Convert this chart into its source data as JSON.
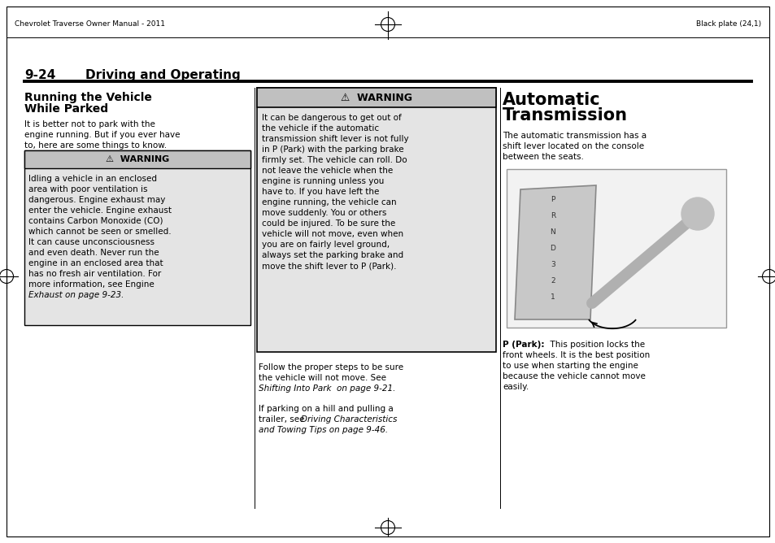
{
  "bg_color": "#ffffff",
  "font_color": "#000000",
  "header_left": "Chevrolet Traverse Owner Manual - 2011",
  "header_right": "Black plate (24,1)",
  "section_number": "9-24",
  "section_title": "Driving and Operating",
  "warning_bg_dark": "#c8c8c8",
  "warning_bg_light": "#e8e8e8",
  "warning_border": "#000000",
  "col1_head1": "Running the Vehicle",
  "col1_head2": "While Parked",
  "col1_intro": [
    "It is better not to park with the",
    "engine running. But if you ever have",
    "to, here are some things to know."
  ],
  "col1_warn_body": [
    "Idling a vehicle in an enclosed",
    "area with poor ventilation is",
    "dangerous. Engine exhaust may",
    "enter the vehicle. Engine exhaust",
    "contains Carbon Monoxide (CO)",
    "which cannot be seen or smelled.",
    "It can cause unconsciousness",
    "and even death. Never run the",
    "engine in an enclosed area that",
    "has no fresh air ventilation. For",
    "more information, see Engine",
    "Exhaust on page 9-23."
  ],
  "col1_warn_italic_from": 11,
  "col2_warn_body": [
    "It can be dangerous to get out of",
    "the vehicle if the automatic",
    "transmission shift lever is not fully",
    "in P (Park) with the parking brake",
    "firmly set. The vehicle can roll. Do",
    "not leave the vehicle when the",
    "engine is running unless you",
    "have to. If you have left the",
    "engine running, the vehicle can",
    "move suddenly. You or others",
    "could be injured. To be sure the",
    "vehicle will not move, even when",
    "you are on fairly level ground,",
    "always set the parking brake and",
    "move the shift lever to P (Park)."
  ],
  "col2_footer1": [
    "Follow the proper steps to be sure",
    "the vehicle will not move. See",
    "Shifting Into Park  on page 9-21."
  ],
  "col2_footer1_italic_from": 2,
  "col2_footer2_line1": "If parking on a hill and pulling a",
  "col2_footer2_line2_normal": "trailer, see ",
  "col2_footer2_line2_italic": "Driving Characteristics",
  "col2_footer2_line3_italic": "and Towing Tips on page 9-46.",
  "col3_head1": "Automatic",
  "col3_head2": "Transmission",
  "col3_intro": [
    "The automatic transmission has a",
    "shift lever located on the console",
    "between the seats."
  ],
  "col3_park_bold": "P (Park):",
  "col3_park_rest": [
    "  This position locks the",
    "front wheels. It is the best position",
    "to use when starting the engine",
    "because the vehicle cannot move",
    "easily."
  ]
}
